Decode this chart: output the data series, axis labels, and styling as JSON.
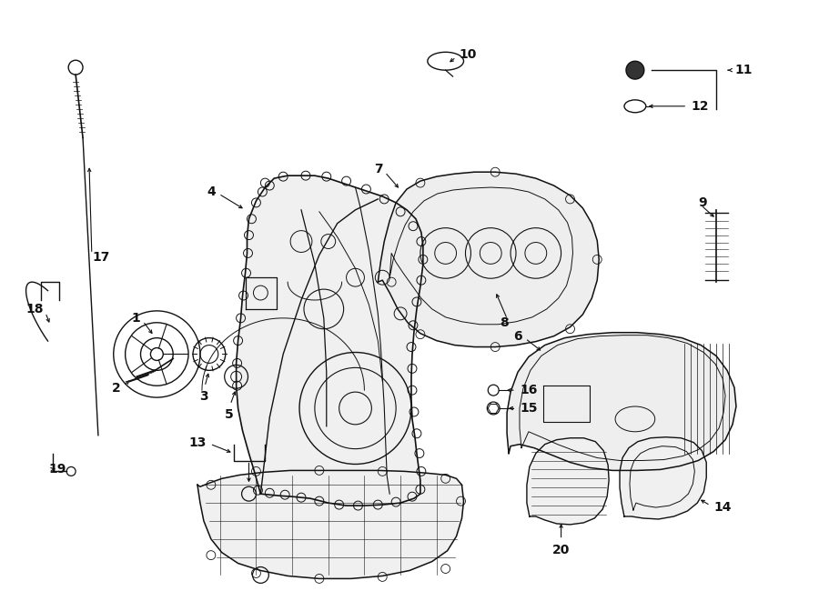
{
  "bg": "#ffffff",
  "lc": "#111111",
  "fig_w": 9.0,
  "fig_h": 6.61,
  "dpi": 100
}
